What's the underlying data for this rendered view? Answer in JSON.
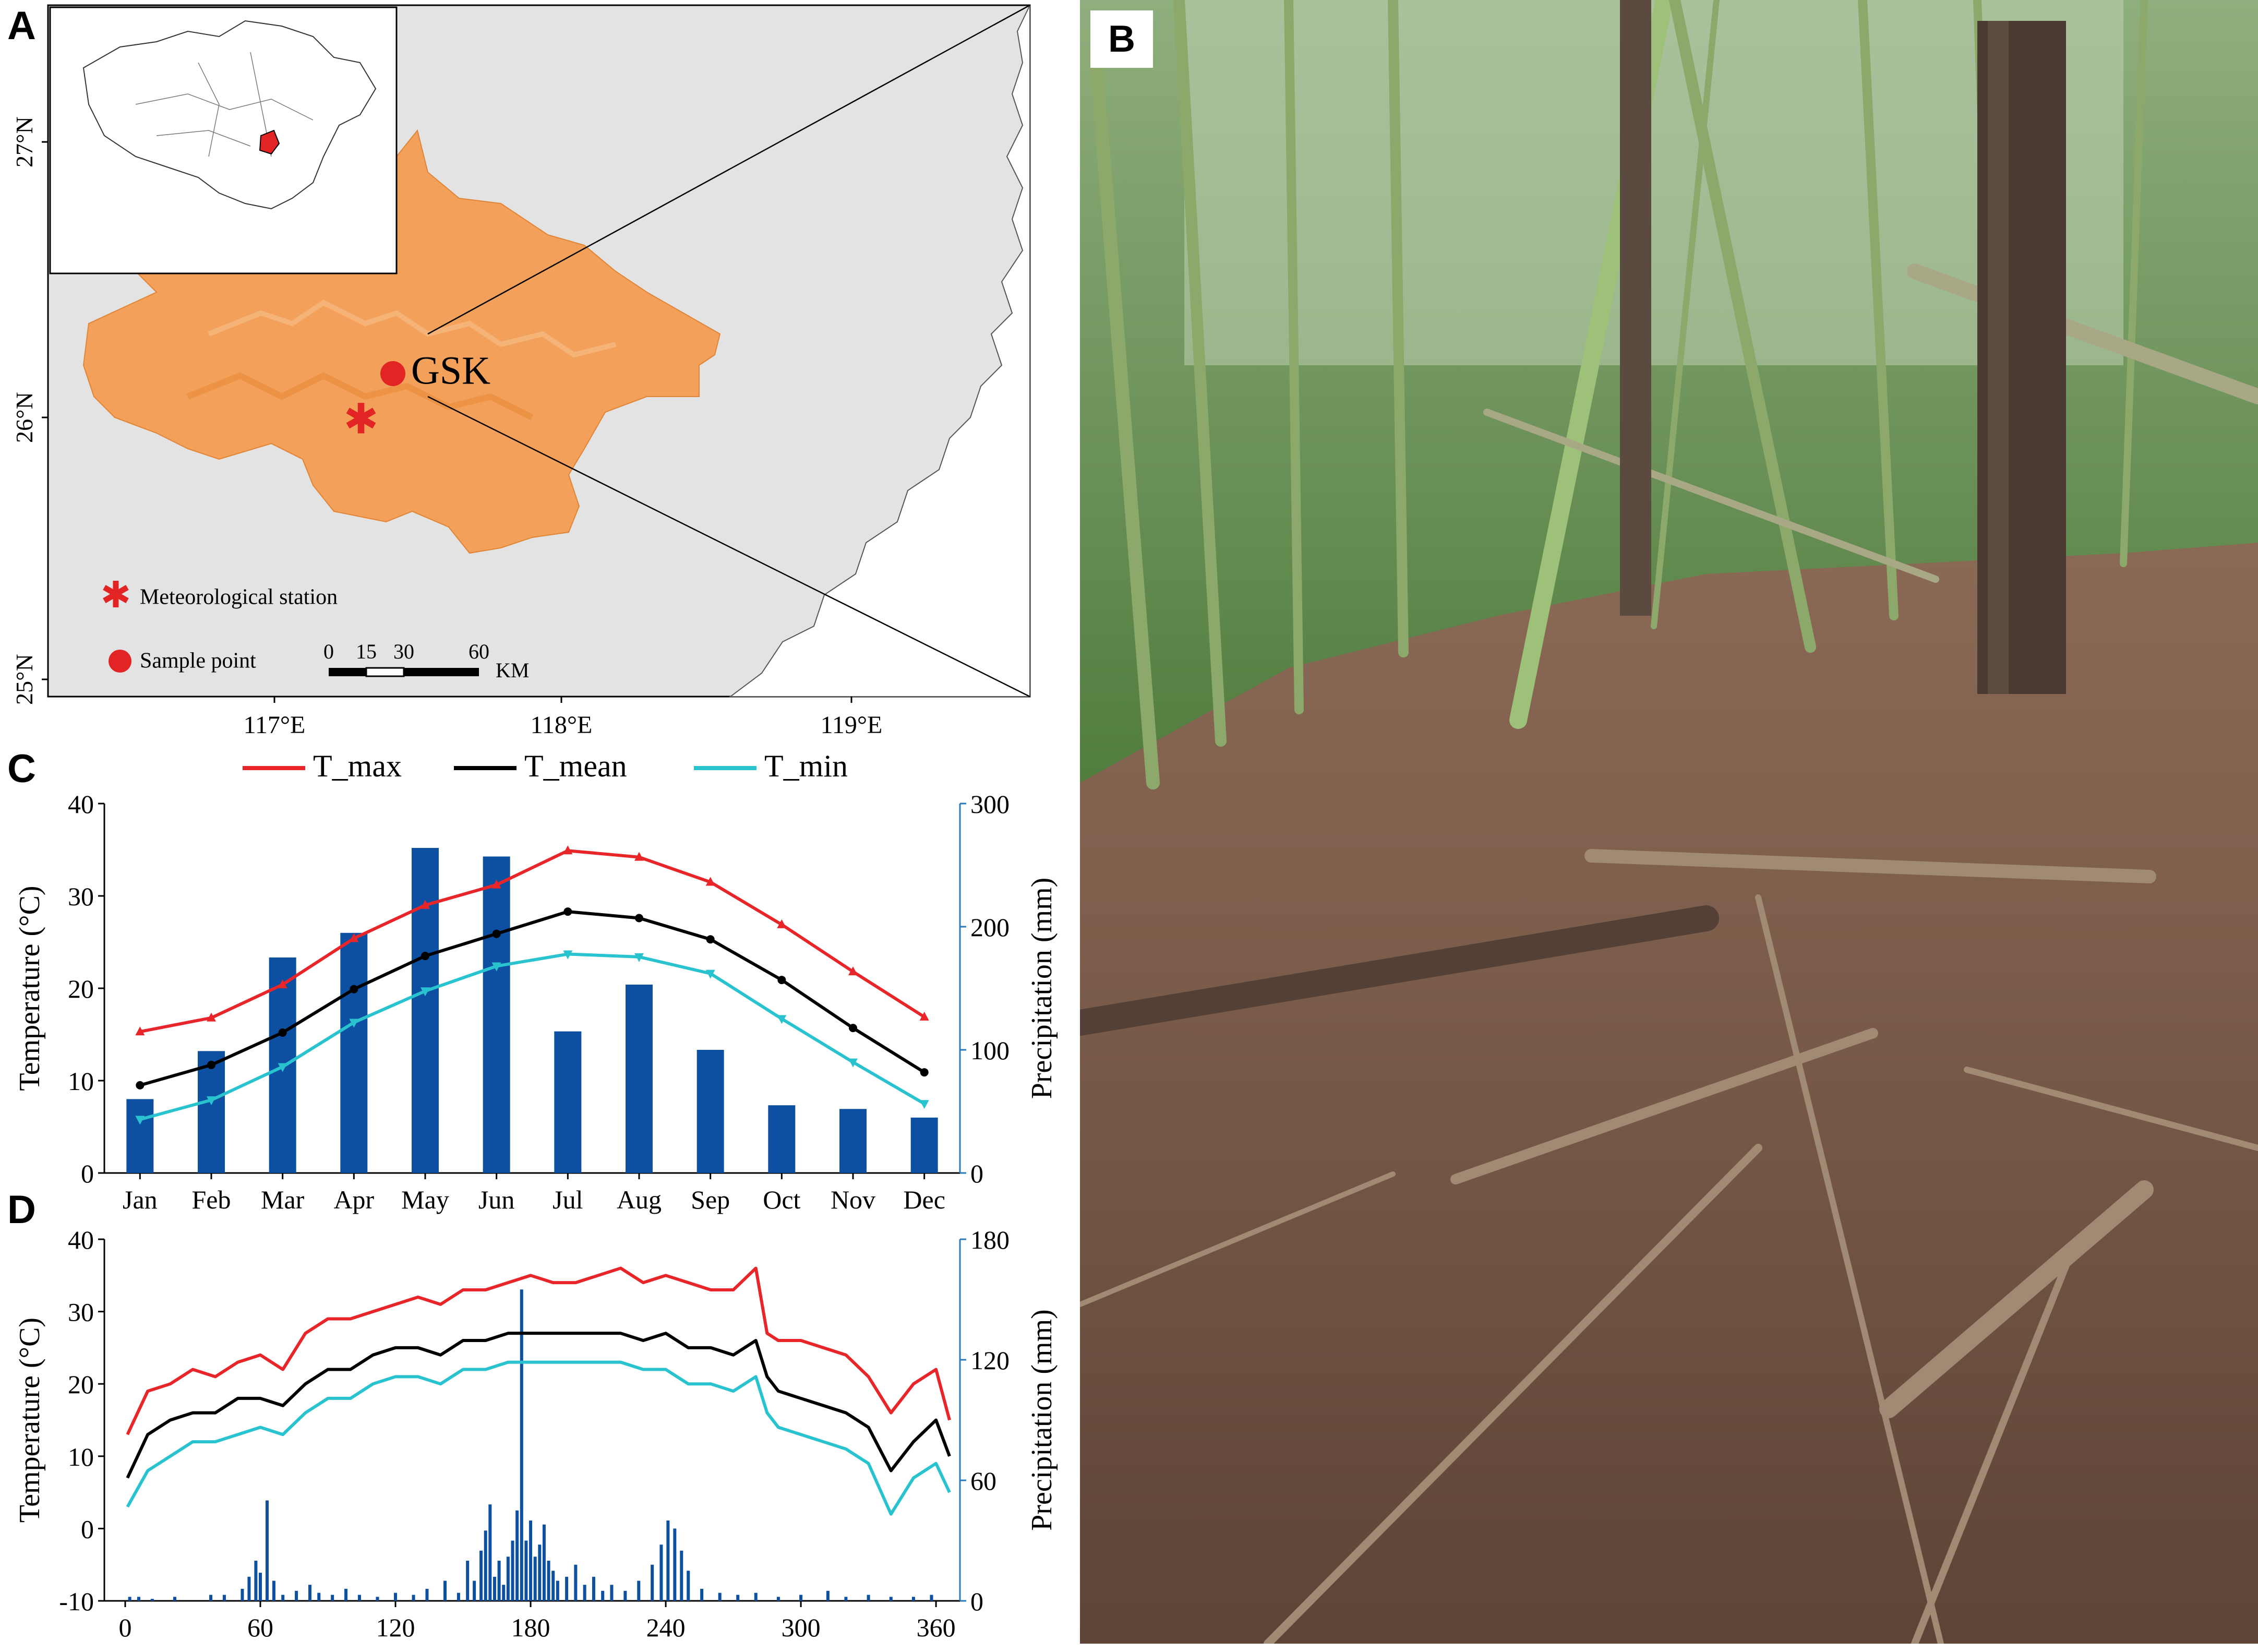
{
  "panels": {
    "a": "A",
    "b": "B",
    "c": "C",
    "d": "D"
  },
  "map": {
    "lat_labels": [
      "27°N",
      "26°N",
      "25°N"
    ],
    "lon_labels": [
      "117°E",
      "118°E",
      "119°E"
    ],
    "site_label": "GSK",
    "legend": {
      "station": "Meteorological station",
      "sample": "Sample point"
    },
    "scalebar": {
      "ticks": [
        "0",
        "15",
        "30",
        "60"
      ],
      "unit": "KM"
    },
    "colors": {
      "region": "#f2a05a",
      "sea": "#e3e3e3",
      "marker": "#e32424"
    }
  },
  "legend": {
    "tmax": "T_max",
    "tmean": "T_mean",
    "tmin": "T_min"
  },
  "colors": {
    "tmax": "#e8262a",
    "tmean": "#000000",
    "tmin": "#29c3cf",
    "precip": "#0d4fa0",
    "right_axis": "#2a7ab8"
  },
  "chart_data": [
    {
      "type": "bar+line",
      "panel": "C",
      "categories": [
        "Jan",
        "Feb",
        "Mar",
        "Apr",
        "May",
        "Jun",
        "Jul",
        "Aug",
        "Sep",
        "Oct",
        "Nov",
        "Dec"
      ],
      "ylabel_left": "Temperature (°C)",
      "ylabel_right": "Precipitation (mm)",
      "ylim_left": [
        0,
        40
      ],
      "ylim_right": [
        0,
        300
      ],
      "yticks_left": [
        "0",
        "10",
        "20",
        "30",
        "40"
      ],
      "yticks_right": [
        "0",
        "100",
        "200",
        "300"
      ],
      "bars": {
        "name": "Precipitation",
        "values": [
          60,
          99,
          175,
          195,
          264,
          257,
          115,
          153,
          100,
          55,
          52,
          45
        ]
      },
      "series": [
        {
          "name": "T_max",
          "values": [
            15.3,
            16.8,
            20.4,
            25.4,
            29.0,
            31.2,
            34.9,
            34.2,
            31.5,
            26.9,
            21.8,
            16.9
          ]
        },
        {
          "name": "T_mean",
          "values": [
            9.5,
            11.7,
            15.2,
            19.9,
            23.5,
            25.9,
            28.3,
            27.6,
            25.3,
            20.9,
            15.7,
            10.9
          ]
        },
        {
          "name": "T_min",
          "values": [
            5.8,
            7.9,
            11.5,
            16.3,
            19.7,
            22.4,
            23.7,
            23.4,
            21.6,
            16.7,
            12.0,
            7.5
          ]
        }
      ],
      "grid": false,
      "legend_position": "top"
    },
    {
      "type": "bar+line",
      "panel": "D",
      "x_domain": [
        0,
        366
      ],
      "xticks": [
        "0",
        "60",
        "120",
        "180",
        "240",
        "300",
        "360"
      ],
      "ylabel_left": "Temperature (°C)",
      "ylabel_right": "Precipitation (mm)",
      "ylim_left": [
        -10,
        40
      ],
      "ylim_right": [
        0,
        180
      ],
      "yticks_left": [
        "-10",
        "0",
        "10",
        "20",
        "30",
        "40"
      ],
      "yticks_right": [
        "0",
        "60",
        "120",
        "180"
      ],
      "series_x": [
        1,
        10,
        20,
        30,
        40,
        50,
        60,
        70,
        80,
        90,
        100,
        110,
        120,
        130,
        140,
        150,
        160,
        170,
        180,
        190,
        200,
        210,
        220,
        230,
        240,
        250,
        260,
        270,
        280,
        285,
        290,
        300,
        310,
        320,
        330,
        340,
        350,
        360,
        366
      ],
      "series": [
        {
          "name": "T_max",
          "values": [
            13,
            19,
            20,
            22,
            21,
            23,
            24,
            22,
            27,
            29,
            29,
            30,
            31,
            32,
            31,
            33,
            33,
            34,
            35,
            34,
            34,
            35,
            36,
            34,
            35,
            34,
            33,
            33,
            36,
            27,
            26,
            26,
            25,
            24,
            21,
            16,
            20,
            22,
            15
          ]
        },
        {
          "name": "T_mean",
          "values": [
            7,
            13,
            15,
            16,
            16,
            18,
            18,
            17,
            20,
            22,
            22,
            24,
            25,
            25,
            24,
            26,
            26,
            27,
            27,
            27,
            27,
            27,
            27,
            26,
            27,
            25,
            25,
            24,
            26,
            21,
            19,
            18,
            17,
            16,
            14,
            8,
            12,
            15,
            10
          ]
        },
        {
          "name": "T_min",
          "values": [
            3,
            8,
            10,
            12,
            12,
            13,
            14,
            13,
            16,
            18,
            18,
            20,
            21,
            21,
            20,
            22,
            22,
            23,
            23,
            23,
            23,
            23,
            23,
            22,
            22,
            20,
            20,
            19,
            21,
            16,
            14,
            13,
            12,
            11,
            9,
            2,
            7,
            9,
            5
          ]
        }
      ],
      "precip_events": [
        {
          "x": 2,
          "v": 2
        },
        {
          "x": 6,
          "v": 2
        },
        {
          "x": 12,
          "v": 1
        },
        {
          "x": 22,
          "v": 2
        },
        {
          "x": 38,
          "v": 3
        },
        {
          "x": 44,
          "v": 3
        },
        {
          "x": 52,
          "v": 6
        },
        {
          "x": 55,
          "v": 12
        },
        {
          "x": 58,
          "v": 20
        },
        {
          "x": 60,
          "v": 14
        },
        {
          "x": 63,
          "v": 50
        },
        {
          "x": 66,
          "v": 10
        },
        {
          "x": 70,
          "v": 3
        },
        {
          "x": 76,
          "v": 5
        },
        {
          "x": 82,
          "v": 8
        },
        {
          "x": 86,
          "v": 4
        },
        {
          "x": 92,
          "v": 3
        },
        {
          "x": 98,
          "v": 6
        },
        {
          "x": 104,
          "v": 3
        },
        {
          "x": 112,
          "v": 2
        },
        {
          "x": 120,
          "v": 4
        },
        {
          "x": 128,
          "v": 3
        },
        {
          "x": 134,
          "v": 6
        },
        {
          "x": 142,
          "v": 10
        },
        {
          "x": 148,
          "v": 4
        },
        {
          "x": 152,
          "v": 20
        },
        {
          "x": 155,
          "v": 10
        },
        {
          "x": 158,
          "v": 25
        },
        {
          "x": 160,
          "v": 35
        },
        {
          "x": 162,
          "v": 48
        },
        {
          "x": 164,
          "v": 12
        },
        {
          "x": 166,
          "v": 20
        },
        {
          "x": 168,
          "v": 8
        },
        {
          "x": 170,
          "v": 22
        },
        {
          "x": 172,
          "v": 30
        },
        {
          "x": 174,
          "v": 45
        },
        {
          "x": 176,
          "v": 155
        },
        {
          "x": 178,
          "v": 30
        },
        {
          "x": 180,
          "v": 40
        },
        {
          "x": 182,
          "v": 22
        },
        {
          "x": 184,
          "v": 28
        },
        {
          "x": 186,
          "v": 38
        },
        {
          "x": 188,
          "v": 20
        },
        {
          "x": 190,
          "v": 15
        },
        {
          "x": 192,
          "v": 10
        },
        {
          "x": 196,
          "v": 12
        },
        {
          "x": 200,
          "v": 18
        },
        {
          "x": 204,
          "v": 8
        },
        {
          "x": 208,
          "v": 12
        },
        {
          "x": 212,
          "v": 5
        },
        {
          "x": 216,
          "v": 8
        },
        {
          "x": 222,
          "v": 5
        },
        {
          "x": 228,
          "v": 10
        },
        {
          "x": 234,
          "v": 18
        },
        {
          "x": 238,
          "v": 28
        },
        {
          "x": 241,
          "v": 40
        },
        {
          "x": 244,
          "v": 36
        },
        {
          "x": 247,
          "v": 25
        },
        {
          "x": 250,
          "v": 15
        },
        {
          "x": 256,
          "v": 6
        },
        {
          "x": 264,
          "v": 4
        },
        {
          "x": 272,
          "v": 3
        },
        {
          "x": 280,
          "v": 4
        },
        {
          "x": 290,
          "v": 2
        },
        {
          "x": 300,
          "v": 3
        },
        {
          "x": 312,
          "v": 5
        },
        {
          "x": 320,
          "v": 2
        },
        {
          "x": 330,
          "v": 3
        },
        {
          "x": 340,
          "v": 2
        },
        {
          "x": 350,
          "v": 2
        },
        {
          "x": 358,
          "v": 3
        }
      ],
      "grid": false
    }
  ]
}
